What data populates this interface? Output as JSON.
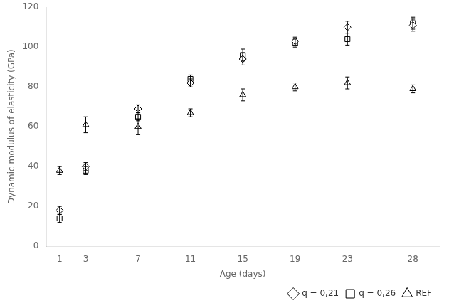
{
  "chart_data": {
    "type": "scatter",
    "xlabel": "Age (days)",
    "ylabel": "Dynamic modulus of elasticity (GPa)",
    "x": [
      1,
      3,
      7,
      11,
      15,
      19,
      23,
      28
    ],
    "series": [
      {
        "name": "q = 0,21",
        "color": "#000000",
        "marker": "diamond",
        "values": [
          18,
          40,
          69,
          82,
          94,
          103,
          110,
          111
        ],
        "yerr": [
          2,
          2,
          2,
          2,
          3,
          2,
          3,
          3
        ]
      },
      {
        "name": "q = 0,26",
        "color": "#000000",
        "marker": "square",
        "values": [
          14,
          38,
          65,
          84,
          96,
          102,
          104,
          112
        ],
        "yerr": [
          2,
          2,
          2,
          2,
          3,
          2,
          3,
          3
        ]
      },
      {
        "name": "REF",
        "color": "#000000",
        "marker": "triangle",
        "values": [
          38,
          61,
          60,
          67,
          76,
          80,
          82,
          79
        ],
        "yerr": [
          2,
          4,
          4,
          2,
          3,
          2,
          3,
          2
        ]
      }
    ],
    "xlim": [
      0,
      30
    ],
    "xticks": [
      1,
      3,
      7,
      11,
      15,
      19,
      23,
      28
    ],
    "ylim": [
      0,
      120
    ],
    "yticks": [
      0,
      20,
      40,
      60,
      80,
      100,
      120
    ],
    "grid": false,
    "legend": "lower right"
  }
}
